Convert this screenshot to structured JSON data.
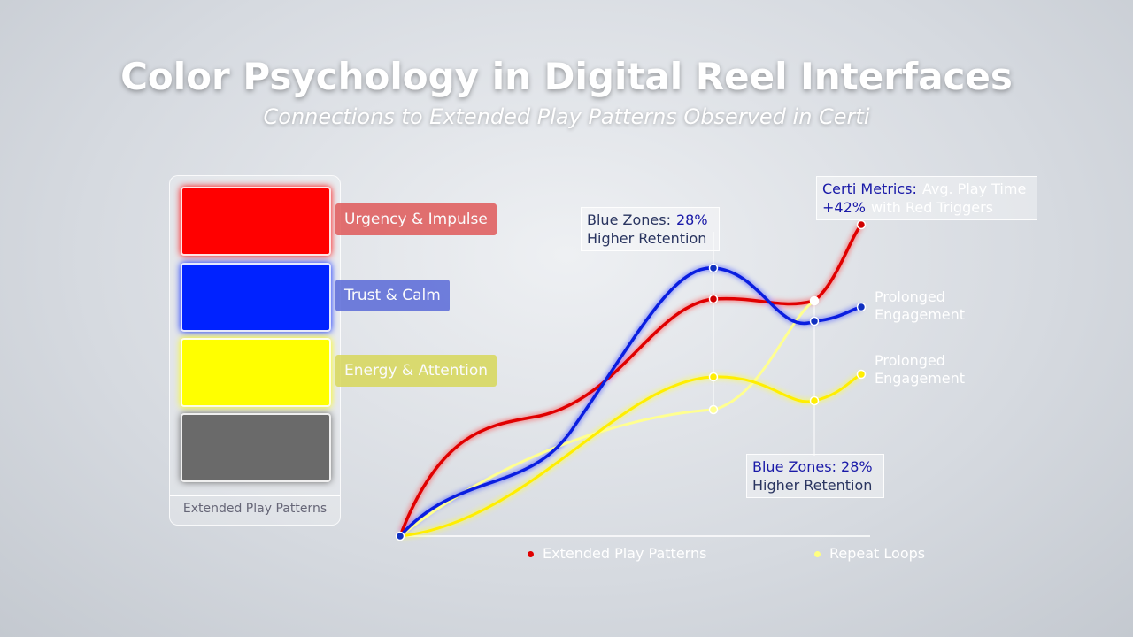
{
  "header": {
    "title": "Color Psychology in Digital Reel Interfaces",
    "subtitle": "Connections to Extended Play Patterns Observed in Certi"
  },
  "palette": {
    "swatches": [
      {
        "color": "#ff0000",
        "label": "Urgency & Impulse",
        "tag": "#e05a5a"
      },
      {
        "color": "#0022ff",
        "label": "Trust & Calm",
        "tag": "#5a6ad8"
      },
      {
        "color": "#ffff00",
        "label": "Energy & Attention",
        "tag": "#d8d85a"
      },
      {
        "color": "#6a6a6a"
      }
    ],
    "caption": "Extended Play Patterns"
  },
  "callouts": [
    {
      "lines": [
        [
          {
            "text": "Blue Zones:"
          },
          {
            "text": "28%",
            "accent": true
          }
        ],
        [
          {
            "text": "Higher Retention"
          }
        ]
      ]
    },
    {
      "lines": [
        [
          {
            "text": "Certi Metrics:",
            "accent": true
          },
          {
            "text": "Avg. Play Time"
          }
        ],
        [
          {
            "text": "+42%",
            "accent": true
          },
          {
            "text": "with Red Triggers"
          }
        ]
      ]
    },
    {
      "lines": [
        [
          {
            "text": "Blue Zones: 28%",
            "accent": true
          }
        ],
        [
          {
            "text": "Higher Retention"
          }
        ]
      ]
    }
  ],
  "end_labels": [
    "Prolonged Engagement",
    "Prolonged Engagement"
  ],
  "legend": [
    {
      "label": "Extended Play Patterns",
      "color": "#e00000"
    },
    {
      "label": "Repeat Loops",
      "color": "#ffff80"
    }
  ]
}
